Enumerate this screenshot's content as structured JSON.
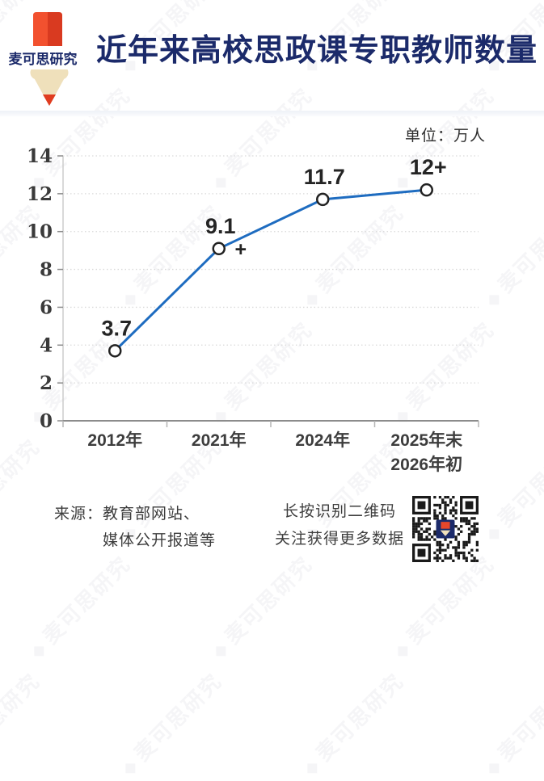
{
  "header": {
    "brand": "麦可思研究",
    "title": "近年来高校思政课专职教师数量"
  },
  "unit_label": "单位：万人",
  "chart_data": {
    "type": "line",
    "title": "近年来高校思政课专职教师数量",
    "unit": "万人",
    "categories": [
      "2012年",
      "2021年",
      "2024年",
      "2025年末\n2026年初"
    ],
    "values": [
      3.7,
      9.1,
      11.7,
      12.2
    ],
    "point_labels": [
      "3.7",
      "9.1",
      "11.7",
      "12+"
    ],
    "point_annotations": [
      {
        "point_index": 1,
        "text": "+"
      }
    ],
    "ylabel": "",
    "xlabel": "",
    "ylim": [
      0,
      14
    ],
    "ytick_step": 2,
    "yticks": [
      0,
      2,
      4,
      6,
      8,
      10,
      12,
      14
    ],
    "grid": "dotted horizontal",
    "legend": "none",
    "line_color": "#1e6cc0",
    "marker": "open-circle"
  },
  "footer": {
    "source_prefix": "来源：",
    "source_lines": [
      "教育部网站、",
      "媒体公开报道等"
    ],
    "qr_caption_line1": "长按识别二维码",
    "qr_caption_line2": "关注获得更多数据"
  },
  "watermark": {
    "text": "麦可思研究"
  },
  "colors": {
    "title_navy": "#1b2a6a",
    "line_blue": "#1e6cc0",
    "logo_red": "#e8472b",
    "logo_red_dark": "#d93a20",
    "logo_cream": "#efe0bb",
    "grid_gray": "#d9d9d9",
    "axis_gray": "#8c8c8c",
    "tick_text": "#3a3a3a",
    "data_label": "#242424",
    "qr_black": "#1a1a1a"
  }
}
